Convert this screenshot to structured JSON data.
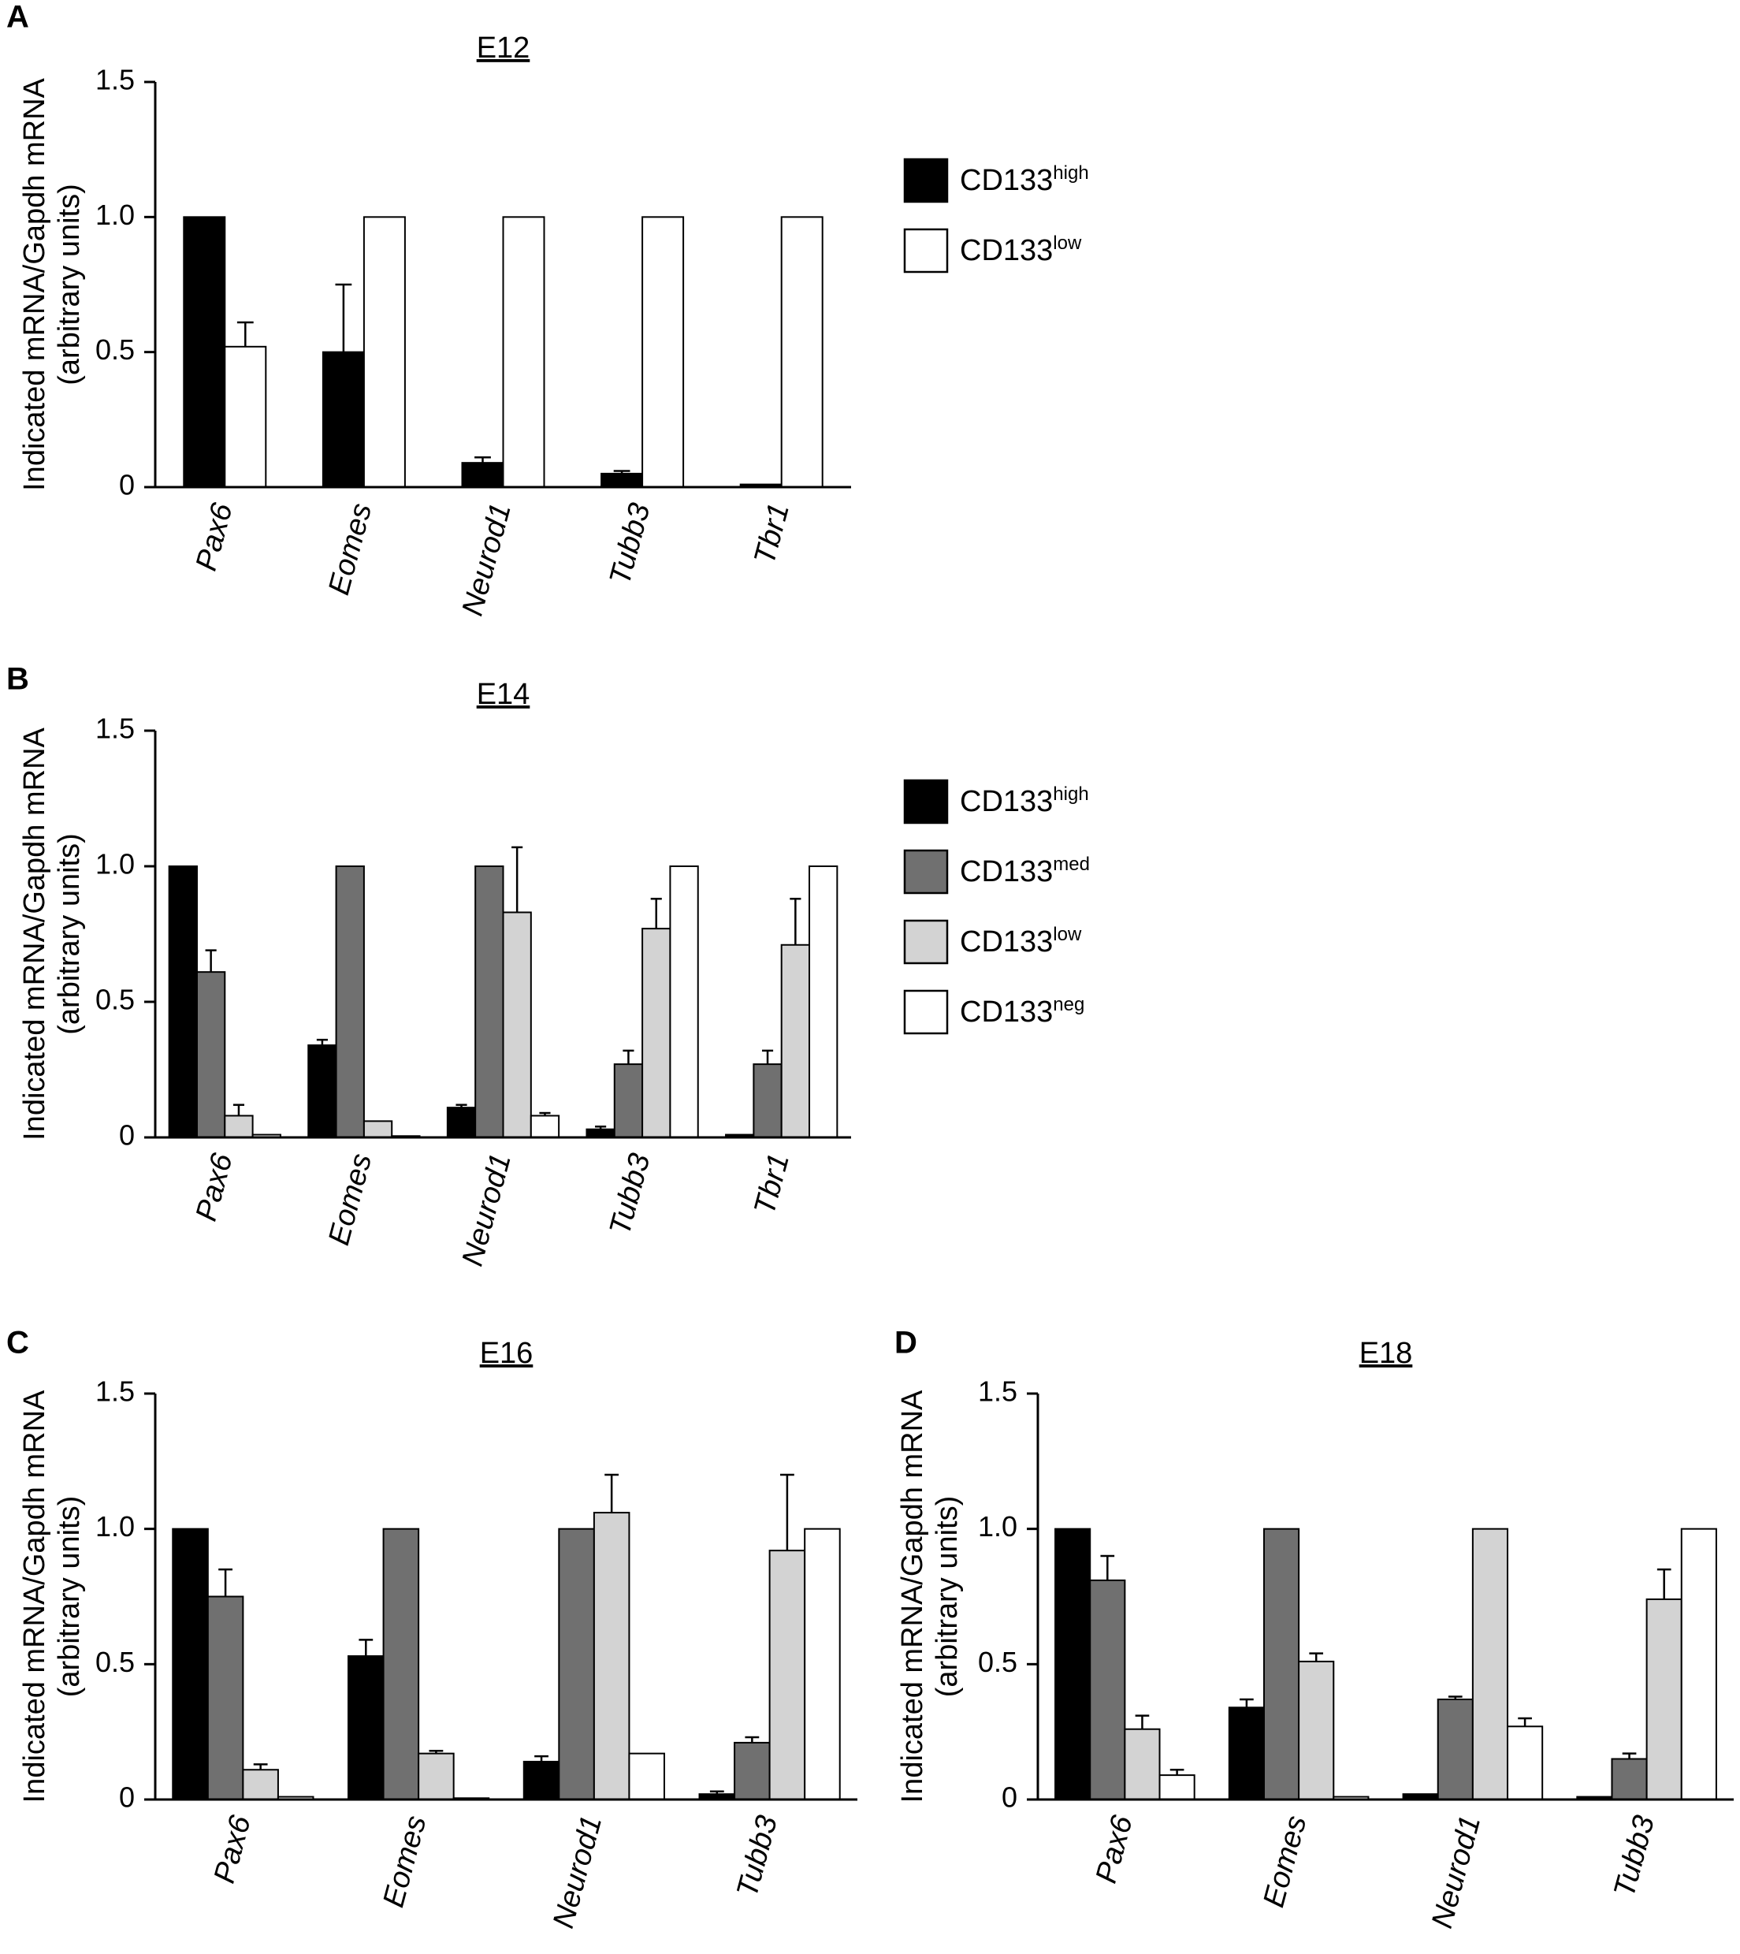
{
  "chart_data": [
    {
      "type": "bar",
      "panel_label": "A",
      "title": "E12",
      "ylabel": "Indicated mRNA/Gapdh mRNA",
      "ylabel2": "(arbitrary units)",
      "categories": [
        "Pax6",
        "Eomes",
        "Neurod1",
        "Tubb3",
        "Tbr1"
      ],
      "series": [
        {
          "name": "CD133high",
          "color": "#000000",
          "values": [
            1.0,
            0.5,
            0.09,
            0.05,
            0.01
          ],
          "errors": [
            0,
            0.25,
            0.02,
            0.01,
            0
          ]
        },
        {
          "name": "CD133low",
          "color": "#ffffff",
          "values": [
            0.52,
            1.0,
            1.0,
            1.0,
            1.0
          ],
          "errors": [
            0.09,
            0,
            0,
            0,
            0
          ]
        }
      ],
      "ylim": [
        0,
        1.5
      ],
      "yticks": [
        0,
        0.5,
        {
          "value": 1,
          "label": "1.0"
        },
        1.5
      ],
      "legend": true
    },
    {
      "type": "bar",
      "panel_label": "B",
      "title": "E14",
      "ylabel": "Indicated mRNA/Gapdh mRNA",
      "ylabel2": "(arbitrary units)",
      "categories": [
        "Pax6",
        "Eomes",
        "Neurod1",
        "Tubb3",
        "Tbr1"
      ],
      "series": [
        {
          "name": "CD133high",
          "color": "#000000",
          "values": [
            1.0,
            0.34,
            0.11,
            0.03,
            0.01
          ],
          "errors": [
            0,
            0.02,
            0.01,
            0.01,
            0
          ]
        },
        {
          "name": "CD133med",
          "color": "#707070",
          "values": [
            0.61,
            1.0,
            1.0,
            0.27,
            0.27
          ],
          "errors": [
            0.08,
            0,
            0,
            0.05,
            0.05
          ]
        },
        {
          "name": "CD133low",
          "color": "#d3d3d3",
          "values": [
            0.08,
            0.06,
            0.83,
            0.77,
            0.71
          ],
          "errors": [
            0.04,
            0,
            0.24,
            0.11,
            0.17
          ]
        },
        {
          "name": "CD133neg",
          "color": "#ffffff",
          "values": [
            0.01,
            0.005,
            0.08,
            1.0,
            1.0
          ],
          "errors": [
            0,
            0,
            0.01,
            0,
            0
          ]
        }
      ],
      "ylim": [
        0,
        1.5
      ],
      "yticks": [
        0,
        0.5,
        {
          "value": 1,
          "label": "1.0"
        },
        1.5
      ],
      "legend": true
    },
    {
      "type": "bar",
      "panel_label": "C",
      "title": "E16",
      "ylabel": "Indicated mRNA/Gapdh mRNA",
      "ylabel2": "(arbitrary units)",
      "categories": [
        "Pax6",
        "Eomes",
        "Neurod1",
        "Tubb3"
      ],
      "series": [
        {
          "name": "CD133high",
          "color": "#000000",
          "values": [
            1.0,
            0.53,
            0.14,
            0.02
          ],
          "errors": [
            0,
            0.06,
            0.02,
            0.01
          ]
        },
        {
          "name": "CD133med",
          "color": "#707070",
          "values": [
            0.75,
            1.0,
            1.0,
            0.21
          ],
          "errors": [
            0.1,
            0,
            0,
            0.02
          ]
        },
        {
          "name": "CD133low",
          "color": "#d3d3d3",
          "values": [
            0.11,
            0.17,
            1.06,
            0.92
          ],
          "errors": [
            0.02,
            0.01,
            0.14,
            0.28
          ]
        },
        {
          "name": "CD133neg",
          "color": "#ffffff",
          "values": [
            0.01,
            0.005,
            0.17,
            1.0
          ],
          "errors": [
            0,
            0,
            0,
            0
          ]
        }
      ],
      "ylim": [
        0,
        1.5
      ],
      "yticks": [
        0,
        0.5,
        {
          "value": 1,
          "label": "1.0"
        },
        1.5
      ],
      "legend": false
    },
    {
      "type": "bar",
      "panel_label": "D",
      "title": "E18",
      "ylabel": "Indicated mRNA/Gapdh mRNA",
      "ylabel2": "(arbitrary units)",
      "categories": [
        "Pax6",
        "Eomes",
        "Neurod1",
        "Tubb3"
      ],
      "series": [
        {
          "name": "CD133high",
          "color": "#000000",
          "values": [
            1.0,
            0.34,
            0.02,
            0.01
          ],
          "errors": [
            0,
            0.03,
            0,
            0
          ]
        },
        {
          "name": "CD133med",
          "color": "#707070",
          "values": [
            0.81,
            1.0,
            0.37,
            0.15
          ],
          "errors": [
            0.09,
            0,
            0.01,
            0.02
          ]
        },
        {
          "name": "CD133low",
          "color": "#d3d3d3",
          "values": [
            0.26,
            0.51,
            1.0,
            0.74
          ],
          "errors": [
            0.05,
            0.03,
            0,
            0.11
          ]
        },
        {
          "name": "CD133neg",
          "color": "#ffffff",
          "values": [
            0.09,
            0.01,
            0.27,
            1.0
          ],
          "errors": [
            0.02,
            0,
            0.03,
            0
          ]
        }
      ],
      "ylim": [
        0,
        1.5
      ],
      "yticks": [
        0,
        0.5,
        {
          "value": 1,
          "label": "1.0"
        },
        1.5
      ],
      "legend": false
    }
  ]
}
